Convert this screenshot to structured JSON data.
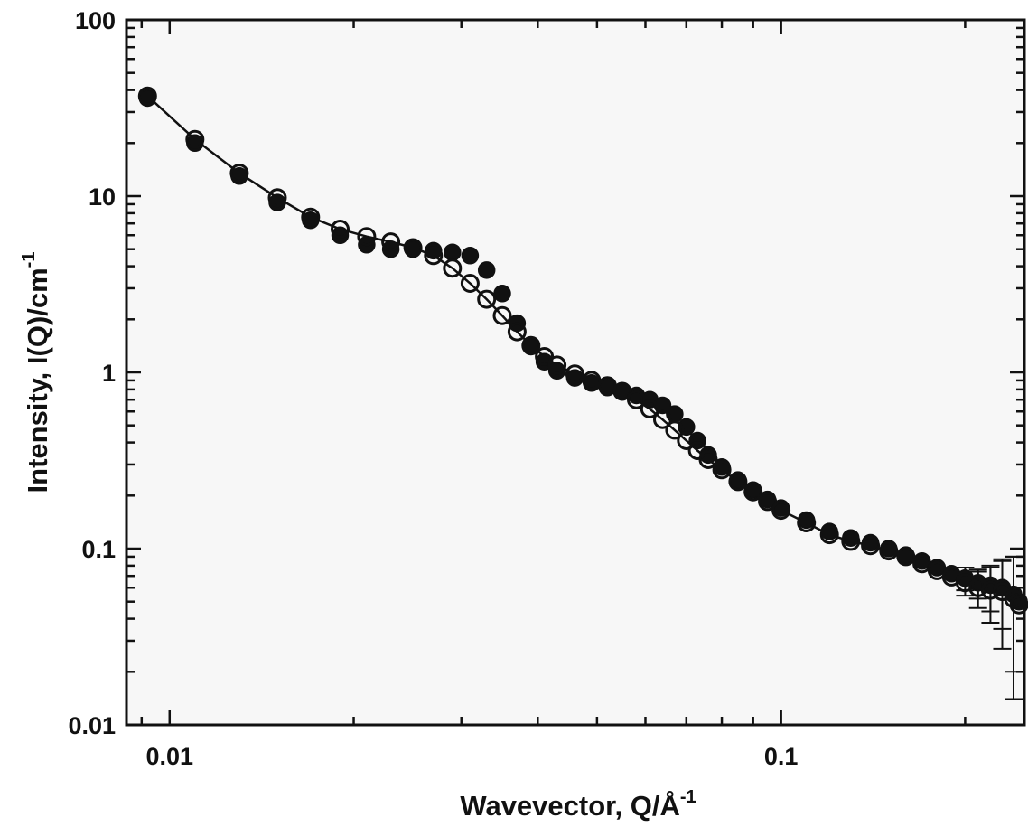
{
  "chart_data": {
    "type": "scatter",
    "title": "",
    "xlabel": "Wavevector, Q/Å",
    "xlabel_sup": "-1",
    "ylabel": "Intensity, I(Q)/cm",
    "ylabel_sup": "-1",
    "x_scale": "log",
    "y_scale": "log",
    "xlim": [
      0.0085,
      0.25
    ],
    "ylim": [
      0.01,
      100
    ],
    "x_ticks": [
      {
        "value": 0.01,
        "label": "0.01"
      },
      {
        "value": 0.1,
        "label": "0.1"
      }
    ],
    "y_ticks": [
      {
        "value": 0.01,
        "label": "0.01"
      },
      {
        "value": 0.1,
        "label": "0.1"
      },
      {
        "value": 1,
        "label": "1"
      },
      {
        "value": 10,
        "label": "10"
      },
      {
        "value": 100,
        "label": "100"
      }
    ],
    "grid": false,
    "legend": "none",
    "colors": {
      "axis": "#111111",
      "plot_bg": "#f7f7f7",
      "marker": "#111111"
    },
    "series": [
      {
        "marker": "filled-circle",
        "line": false,
        "points": [
          [
            0.0092,
            36
          ],
          [
            0.011,
            20
          ],
          [
            0.013,
            13
          ],
          [
            0.015,
            9.2
          ],
          [
            0.017,
            7.3
          ],
          [
            0.019,
            6.0
          ],
          [
            0.021,
            5.3
          ],
          [
            0.023,
            5.0
          ],
          [
            0.025,
            5.0
          ],
          [
            0.027,
            4.9
          ],
          [
            0.029,
            4.8
          ],
          [
            0.031,
            4.6
          ],
          [
            0.033,
            3.8
          ],
          [
            0.035,
            2.8
          ],
          [
            0.037,
            1.9
          ],
          [
            0.039,
            1.4
          ],
          [
            0.041,
            1.15
          ],
          [
            0.043,
            1.02
          ],
          [
            0.046,
            0.93
          ],
          [
            0.049,
            0.87
          ],
          [
            0.052,
            0.82
          ],
          [
            0.055,
            0.78
          ],
          [
            0.058,
            0.74
          ],
          [
            0.061,
            0.7
          ],
          [
            0.064,
            0.65
          ],
          [
            0.067,
            0.58
          ],
          [
            0.07,
            0.49
          ],
          [
            0.073,
            0.41
          ],
          [
            0.076,
            0.34
          ],
          [
            0.08,
            0.29
          ],
          [
            0.085,
            0.245
          ],
          [
            0.09,
            0.215
          ],
          [
            0.095,
            0.19
          ],
          [
            0.1,
            0.17
          ],
          [
            0.11,
            0.145
          ],
          [
            0.12,
            0.125
          ],
          [
            0.13,
            0.115
          ],
          [
            0.14,
            0.108
          ],
          [
            0.15,
            0.1
          ],
          [
            0.16,
            0.092
          ],
          [
            0.17,
            0.085
          ],
          [
            0.18,
            0.078
          ],
          [
            0.19,
            0.072
          ],
          [
            0.2,
            0.068
          ],
          [
            0.21,
            0.064
          ],
          [
            0.22,
            0.062
          ],
          [
            0.23,
            0.06
          ],
          [
            0.24,
            0.055
          ],
          [
            0.245,
            0.05
          ]
        ],
        "error_bars": [
          [
            0.2,
            0.068,
            0.01
          ],
          [
            0.21,
            0.064,
            0.012
          ],
          [
            0.22,
            0.062,
            0.018
          ],
          [
            0.23,
            0.06,
            0.025
          ],
          [
            0.24,
            0.055,
            0.035
          ]
        ]
      },
      {
        "marker": "open-circle",
        "line": true,
        "points": [
          [
            0.0092,
            37
          ],
          [
            0.011,
            21
          ],
          [
            0.013,
            13.5
          ],
          [
            0.015,
            9.8
          ],
          [
            0.017,
            7.6
          ],
          [
            0.019,
            6.5
          ],
          [
            0.021,
            5.9
          ],
          [
            0.023,
            5.5
          ],
          [
            0.025,
            5.1
          ],
          [
            0.027,
            4.6
          ],
          [
            0.029,
            3.9
          ],
          [
            0.031,
            3.2
          ],
          [
            0.033,
            2.6
          ],
          [
            0.035,
            2.1
          ],
          [
            0.037,
            1.7
          ],
          [
            0.039,
            1.42
          ],
          [
            0.041,
            1.23
          ],
          [
            0.043,
            1.1
          ],
          [
            0.046,
            0.98
          ],
          [
            0.049,
            0.9
          ],
          [
            0.052,
            0.84
          ],
          [
            0.055,
            0.78
          ],
          [
            0.058,
            0.7
          ],
          [
            0.061,
            0.62
          ],
          [
            0.064,
            0.54
          ],
          [
            0.067,
            0.47
          ],
          [
            0.07,
            0.41
          ],
          [
            0.073,
            0.36
          ],
          [
            0.076,
            0.32
          ],
          [
            0.08,
            0.28
          ],
          [
            0.085,
            0.24
          ],
          [
            0.09,
            0.21
          ],
          [
            0.095,
            0.185
          ],
          [
            0.1,
            0.165
          ],
          [
            0.11,
            0.14
          ],
          [
            0.12,
            0.12
          ],
          [
            0.13,
            0.11
          ],
          [
            0.14,
            0.104
          ],
          [
            0.15,
            0.097
          ],
          [
            0.16,
            0.09
          ],
          [
            0.17,
            0.082
          ],
          [
            0.18,
            0.075
          ],
          [
            0.19,
            0.069
          ],
          [
            0.2,
            0.064
          ],
          [
            0.21,
            0.06
          ],
          [
            0.22,
            0.058
          ],
          [
            0.23,
            0.057
          ],
          [
            0.24,
            0.052
          ],
          [
            0.245,
            0.048
          ]
        ],
        "error_bars": [
          [
            0.2,
            0.064,
            0.01
          ],
          [
            0.21,
            0.06,
            0.014
          ],
          [
            0.22,
            0.058,
            0.02
          ],
          [
            0.23,
            0.057,
            0.03
          ],
          [
            0.24,
            0.052,
            0.038
          ]
        ]
      }
    ]
  }
}
